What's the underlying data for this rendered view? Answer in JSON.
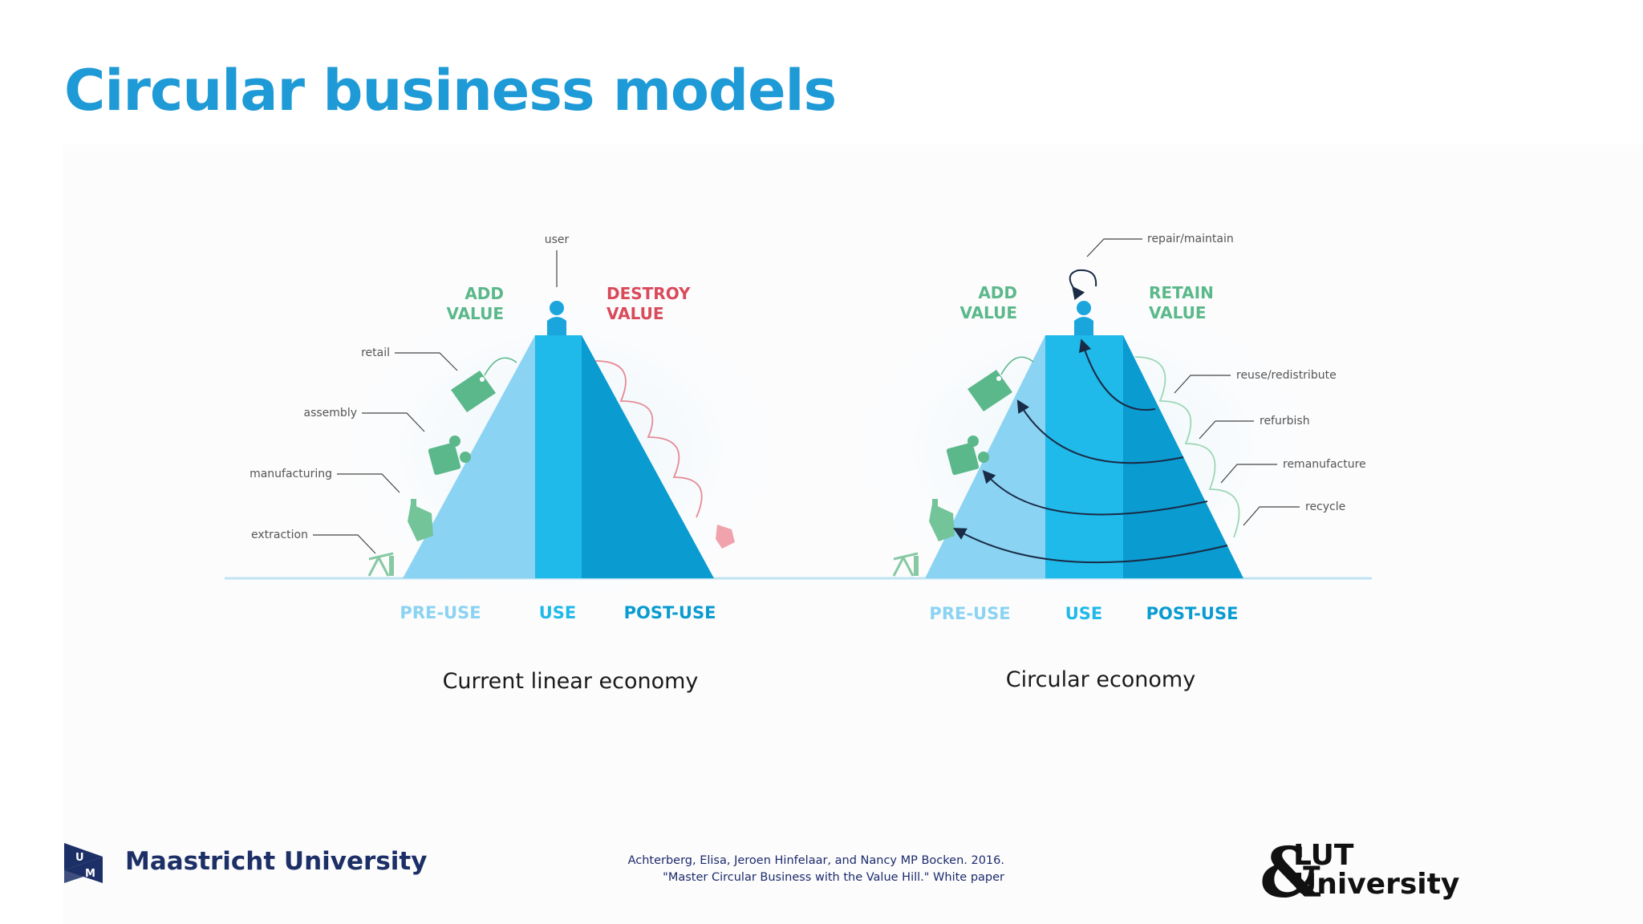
{
  "slide": {
    "title": "Circular business models"
  },
  "linear": {
    "left_heading": [
      "ADD",
      "VALUE"
    ],
    "right_heading": [
      "DESTROY",
      "VALUE"
    ],
    "user_label": "user",
    "stages": [
      {
        "label": "retail",
        "icon": "tag-icon"
      },
      {
        "label": "assembly",
        "icon": "puzzle-icon"
      },
      {
        "label": "manufacturing",
        "icon": "factory-icon"
      },
      {
        "label": "extraction",
        "icon": "oil-pump-icon"
      }
    ],
    "phases": [
      "PRE-USE",
      "USE",
      "POST-USE"
    ],
    "caption": "Current linear economy"
  },
  "circular": {
    "left_heading": [
      "ADD",
      "VALUE"
    ],
    "right_heading": [
      "RETAIN",
      "VALUE"
    ],
    "top_label": "repair/maintain",
    "loops": [
      "reuse/redistribute",
      "refurbish",
      "remanufacture",
      "recycle"
    ],
    "phases": [
      "PRE-USE",
      "USE",
      "POST-USE"
    ],
    "caption": "Circular economy"
  },
  "citation": {
    "line1": "Achterberg, Elisa, Jeroen Hinfelaar, and Nancy MP Bocken. 2016.",
    "line2": "\"Master Circular Business with the Value Hill.\" White paper"
  },
  "logos": {
    "maastricht": {
      "name": "Maastricht University",
      "mark_letters": [
        "U",
        "M"
      ]
    },
    "lut": {
      "line1": "LUT",
      "line2": "University",
      "mark": "&"
    }
  },
  "colors": {
    "title": "#1e9ad6",
    "green": "#5bb88a",
    "red": "#d94a5a",
    "pre_use": "#8ad3f2",
    "use": "#1fb9ea",
    "post_use": "#0a9bd0",
    "navy": "#1c2f66"
  }
}
